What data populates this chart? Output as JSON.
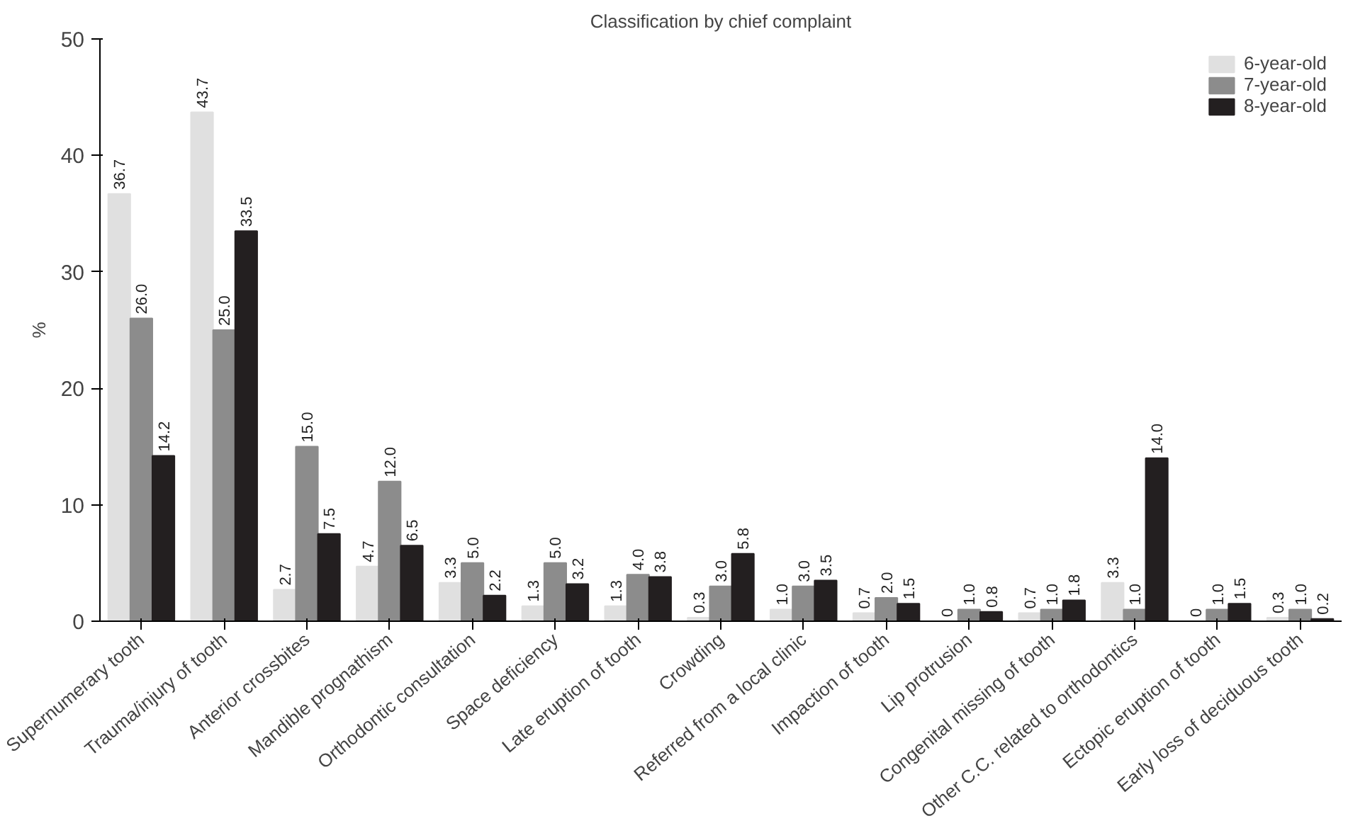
{
  "chart_data": {
    "type": "bar",
    "title": "Classification by chief complaint",
    "ylabel": "%",
    "categories": [
      "Supernumerary tooth",
      "Trauma/injury of tooth",
      "Anterior crossbites",
      "Mandible prognathism",
      "Orthodontic consultation",
      "Space deficiency",
      "Late eruption of tooth",
      "Crowding",
      "Referred from a local clinic",
      "Impaction of tooth",
      "Lip protrusion",
      "Congenital missing of tooth",
      "Other C.C. related to orthodontics",
      "Ectopic eruption of tooth",
      "Early loss of deciduous tooth"
    ],
    "series": [
      {
        "name": "6-year-old",
        "color": "#e0e0e0",
        "values": [
          36.7,
          43.7,
          2.7,
          4.7,
          3.3,
          1.3,
          1.3,
          0.3,
          1.0,
          0.7,
          0,
          0.7,
          3.3,
          0,
          0.3
        ],
        "value_labels": [
          "36.7",
          "43.7",
          "2.7",
          "4.7",
          "3.3",
          "1.3",
          "1.3",
          "0.3",
          "1.0",
          "0.7",
          "0",
          "0.7",
          "3.3",
          "0",
          "0.3"
        ]
      },
      {
        "name": "7-year-old",
        "color": "#8c8c8c",
        "values": [
          26.0,
          25.0,
          15.0,
          12.0,
          5.0,
          5.0,
          4.0,
          3.0,
          3.0,
          2.0,
          1.0,
          1.0,
          1.0,
          1.0,
          1.0
        ],
        "value_labels": [
          "26.0",
          "25.0",
          "15.0",
          "12.0",
          "5.0",
          "5.0",
          "4.0",
          "3.0",
          "3.0",
          "2.0",
          "1.0",
          "1.0",
          "1.0",
          "1.0",
          "1.0"
        ]
      },
      {
        "name": "8-year-old",
        "color": "#231f20",
        "values": [
          14.2,
          33.5,
          7.5,
          6.5,
          2.2,
          3.2,
          3.8,
          5.8,
          3.5,
          1.5,
          0.8,
          1.8,
          14.0,
          1.5,
          0.2
        ],
        "value_labels": [
          "14.2",
          "33.5",
          "7.5",
          "6.5",
          "2.2",
          "3.2",
          "3.8",
          "5.8",
          "3.5",
          "1.5",
          "0.8",
          "1.8",
          "14.0",
          "1.5",
          "0.2"
        ]
      }
    ],
    "ylim": [
      0,
      50
    ],
    "yticks": [
      0,
      10,
      20,
      30,
      40,
      50
    ],
    "grid": false,
    "legend": "top right"
  }
}
